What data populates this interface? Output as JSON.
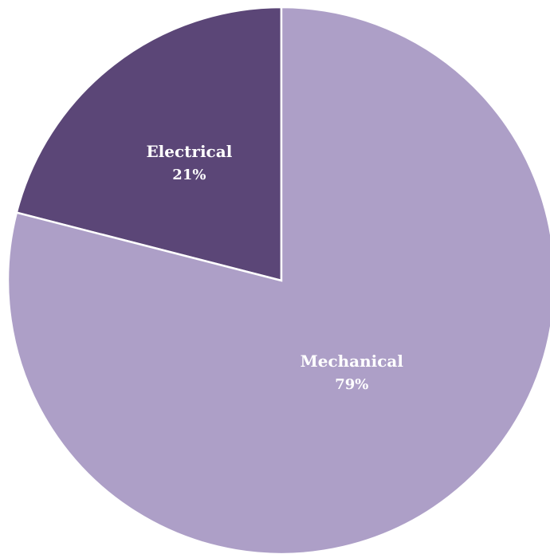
{
  "chart_data": {
    "type": "pie",
    "title": "",
    "slices": [
      {
        "label": "Electrical",
        "value": 21,
        "value_label": "21%",
        "color": "#5b4677"
      },
      {
        "label": "Mechanical",
        "value": 79,
        "value_label": "79%",
        "color": "#ad9fc7"
      }
    ],
    "start": "12 o'clock",
    "direction": "counterclockwise for first slice",
    "slice_border_color": "#ffffff",
    "legend": "none"
  }
}
